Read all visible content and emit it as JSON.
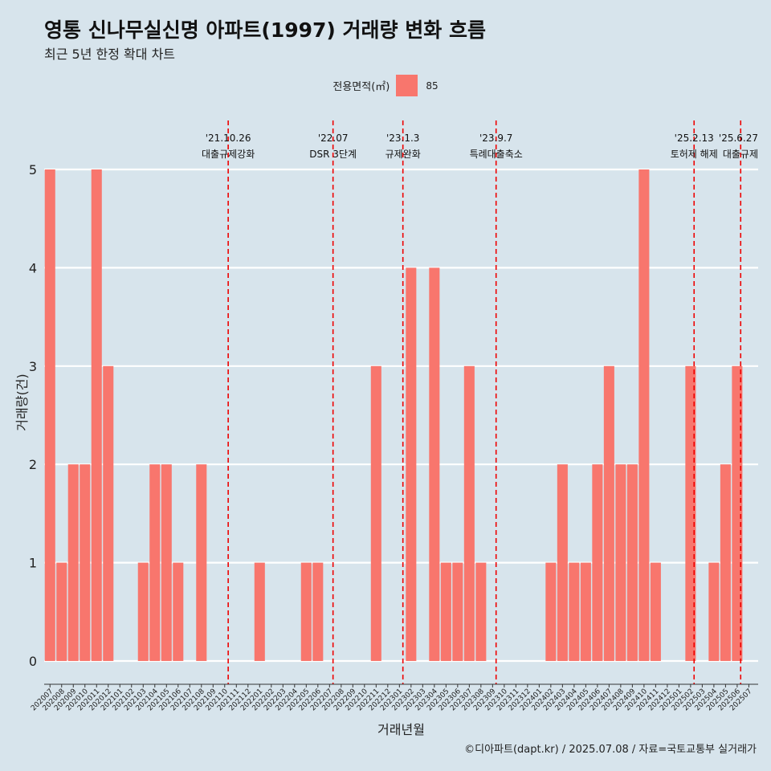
{
  "chart_data": {
    "type": "bar",
    "title": "영통 신나무실신명 아파트(1997) 거래량 변화 흐름",
    "subtitle": "최근 5년 한정 확대 차트",
    "xlabel": "거래년월",
    "ylabel": "거래량(건)",
    "ylim": [
      0,
      5
    ],
    "yticks": [
      0,
      1,
      2,
      3,
      4,
      5
    ],
    "grid": "horizontal",
    "legend": {
      "title": "전용면적(㎡)",
      "placement": "top",
      "entries": [
        {
          "label": "85",
          "color": "#f8766d"
        }
      ]
    },
    "bar_color": "#f8766d",
    "categories": [
      "202007",
      "202008",
      "202009",
      "202010",
      "202011",
      "202012",
      "202101",
      "202102",
      "202103",
      "202104",
      "202105",
      "202106",
      "202107",
      "202108",
      "202109",
      "202110",
      "202111",
      "202112",
      "202201",
      "202202",
      "202203",
      "202204",
      "202205",
      "202206",
      "202207",
      "202208",
      "202209",
      "202210",
      "202211",
      "202212",
      "202301",
      "202302",
      "202303",
      "202304",
      "202305",
      "202306",
      "202307",
      "202308",
      "202309",
      "202310",
      "202311",
      "202312",
      "202401",
      "202402",
      "202403",
      "202404",
      "202405",
      "202406",
      "202407",
      "202408",
      "202409",
      "202410",
      "202411",
      "202412",
      "202501",
      "202502",
      "202503",
      "202504",
      "202505",
      "202506",
      "202507"
    ],
    "values": [
      5,
      1,
      2,
      2,
      5,
      3,
      0,
      0,
      1,
      2,
      2,
      1,
      0,
      2,
      0,
      0,
      0,
      0,
      1,
      0,
      0,
      0,
      1,
      1,
      0,
      0,
      0,
      0,
      3,
      0,
      0,
      4,
      0,
      4,
      1,
      1,
      3,
      1,
      0,
      0,
      0,
      0,
      0,
      1,
      2,
      1,
      1,
      2,
      3,
      2,
      2,
      5,
      1,
      0,
      0,
      3,
      0,
      1,
      2,
      3,
      0
    ],
    "annotations": [
      {
        "date": "'21.10.26",
        "label": "대출규제강화",
        "at": 15.3
      },
      {
        "date": "'22.07",
        "label": "DSR 3단계",
        "at": 24.3
      },
      {
        "date": "'23.1.3",
        "label": "규제완화",
        "at": 30.3
      },
      {
        "date": "'23.9.7",
        "label": "특례대출축소",
        "at": 38.3
      },
      {
        "date": "'25.2.13",
        "label": "토허제 해제",
        "at": 55.3
      },
      {
        "date": "'25.6.27",
        "label": "대출규제",
        "at": 59.3
      }
    ],
    "annotation_color": "#ee0000",
    "caption": "©디아파트(dapt.kr) / 2025.07.08 / 자료=국토교통부 실거래가"
  }
}
